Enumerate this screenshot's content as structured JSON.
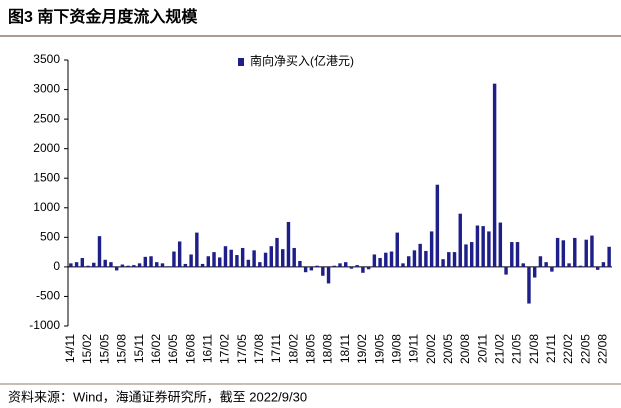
{
  "figure_title": "图3  南下资金月度流入规模",
  "source": "资料来源：Wind，海通证券研究所，截至 2022/9/30",
  "chart_data": {
    "type": "bar",
    "categories": [
      "14/11",
      null,
      null,
      "15/02",
      null,
      null,
      "15/05",
      null,
      null,
      "15/08",
      null,
      null,
      "15/11",
      null,
      null,
      "16/02",
      null,
      null,
      "16/05",
      null,
      null,
      "16/08",
      null,
      null,
      "16/11",
      null,
      null,
      "17/02",
      null,
      null,
      "17/05",
      null,
      null,
      "17/08",
      null,
      null,
      "17/11",
      null,
      null,
      "18/02",
      null,
      null,
      "18/05",
      null,
      null,
      "18/08",
      null,
      null,
      "18/11",
      null,
      null,
      "19/02",
      null,
      null,
      "19/05",
      null,
      null,
      "19/08",
      null,
      null,
      "19/11",
      null,
      null,
      "20/02",
      null,
      null,
      "20/05",
      null,
      null,
      "20/08",
      null,
      null,
      "20/11",
      null,
      null,
      "21/02",
      null,
      null,
      "21/05",
      null,
      null,
      "21/08",
      null,
      null,
      "21/11",
      null,
      null,
      "22/02",
      null,
      null,
      "22/05",
      null,
      null,
      "22/08",
      null
    ],
    "series": [
      {
        "name": "南向净买入(亿港元)",
        "color": "#1f1f8a",
        "values": [
          60,
          80,
          150,
          20,
          70,
          520,
          120,
          80,
          -60,
          40,
          20,
          30,
          60,
          170,
          180,
          80,
          60,
          10,
          260,
          430,
          50,
          210,
          580,
          50,
          180,
          250,
          160,
          350,
          290,
          200,
          320,
          120,
          280,
          80,
          240,
          350,
          490,
          300,
          760,
          320,
          100,
          -90,
          -60,
          20,
          -150,
          -280,
          20,
          60,
          80,
          -30,
          30,
          -100,
          -40,
          210,
          150,
          240,
          260,
          580,
          60,
          180,
          280,
          390,
          270,
          600,
          1390,
          130,
          250,
          250,
          900,
          380,
          420,
          700,
          690,
          600,
          3100,
          750,
          -130,
          420,
          420,
          60,
          -620,
          -180,
          180,
          80,
          -80,
          490,
          450,
          60,
          490,
          20,
          460,
          530,
          -50,
          80,
          340
        ]
      }
    ],
    "ylim": [
      -1000,
      3500
    ],
    "yticks": [
      -1000,
      -500,
      0,
      500,
      1000,
      1500,
      2000,
      2500,
      3000,
      3500
    ],
    "legend": "top"
  }
}
